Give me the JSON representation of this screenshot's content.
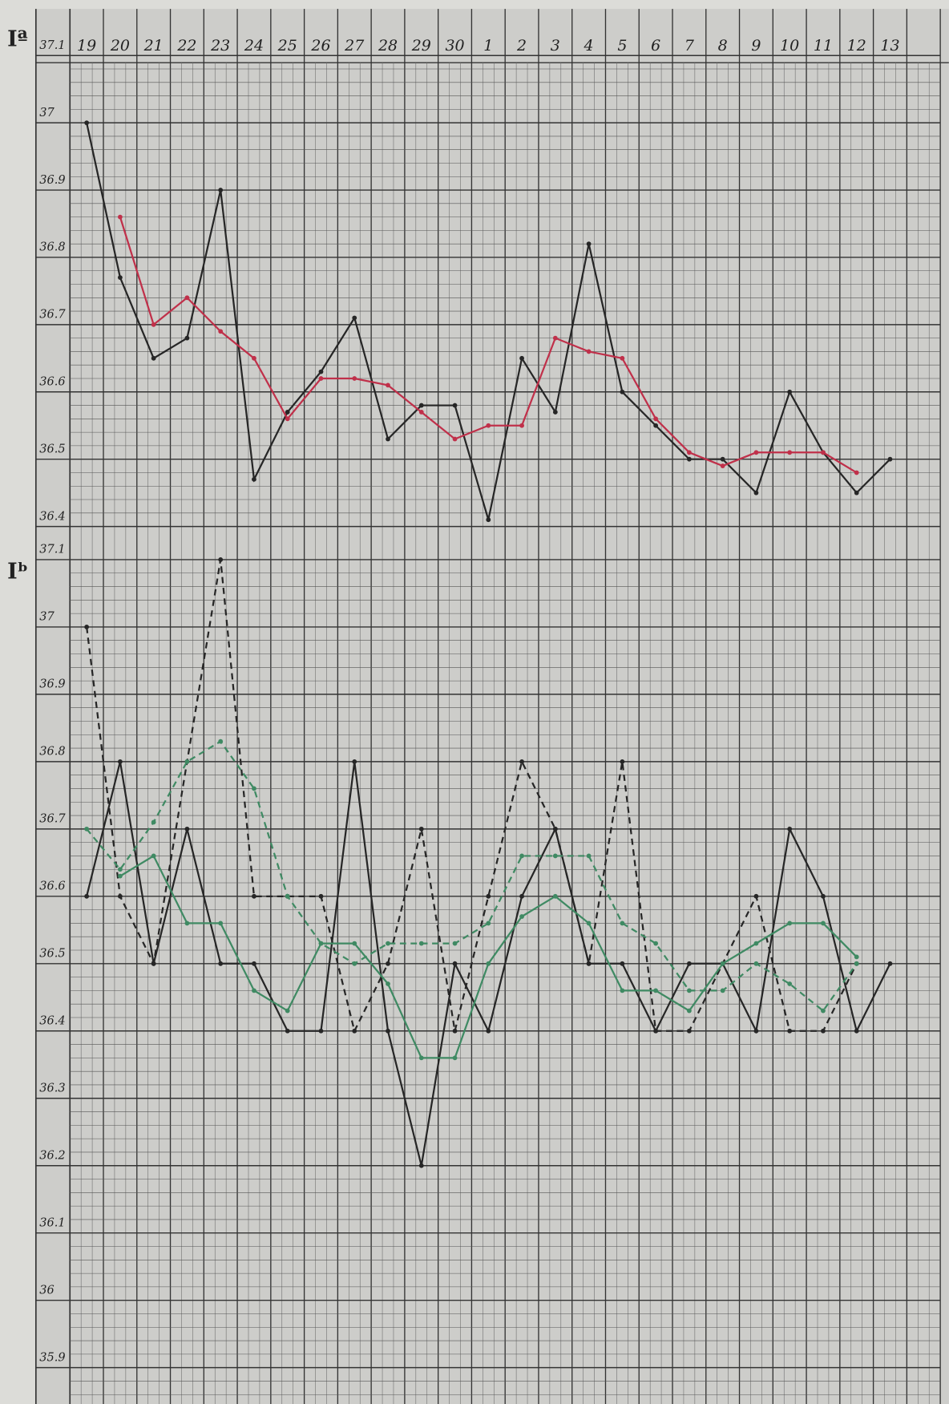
{
  "chart_data": [
    {
      "type": "line",
      "title": "Iª",
      "categories": [
        "19",
        "20",
        "21",
        "22",
        "23",
        "24",
        "25",
        "26",
        "27",
        "28",
        "29",
        "30",
        "1",
        "2",
        "3",
        "4",
        "5",
        "6",
        "7",
        "8",
        "9",
        "10",
        "11",
        "12",
        "13"
      ],
      "ylim": [
        36.38,
        37.1
      ],
      "yticks": [
        37.1,
        37,
        36.9,
        36.8,
        36.7,
        36.6,
        36.5,
        36.4
      ],
      "grid": true,
      "series": [
        {
          "color": "#262626",
          "dashed": false,
          "values": [
            37.0,
            36.77,
            36.65,
            36.68,
            36.9,
            36.47,
            36.57,
            36.63,
            36.71,
            36.53,
            36.58,
            36.58,
            36.41,
            36.65,
            36.57,
            36.82,
            36.6,
            36.55,
            36.5,
            36.5,
            36.45,
            36.6,
            36.51,
            36.45,
            36.5
          ]
        },
        {
          "color": "#c0304a",
          "dashed": false,
          "values": [
            null,
            36.86,
            36.7,
            36.74,
            36.69,
            36.65,
            36.56,
            36.62,
            36.62,
            36.61,
            36.57,
            36.53,
            36.55,
            36.55,
            36.68,
            36.66,
            36.65,
            36.56,
            36.51,
            36.49,
            36.51,
            36.51,
            36.51,
            36.48,
            null
          ]
        }
      ]
    },
    {
      "type": "line",
      "title": "Iᵇ",
      "ylim": [
        35.85,
        37.1
      ],
      "yticks": [
        37.1,
        37,
        36.9,
        36.8,
        36.7,
        36.6,
        36.5,
        36.4,
        36.3,
        36.2,
        36.1,
        36,
        35.9
      ],
      "grid": true,
      "series": [
        {
          "color": "#262626",
          "dashed": false,
          "values": [
            36.6,
            36.8,
            36.5,
            36.7,
            36.5,
            36.5,
            36.4,
            36.4,
            36.8,
            36.4,
            36.2,
            36.5,
            36.4,
            36.6,
            36.7,
            36.5,
            36.5,
            36.4,
            36.5,
            36.5,
            36.4,
            36.7,
            36.6,
            36.4,
            36.5
          ]
        },
        {
          "color": "#262626",
          "dashed": true,
          "values": [
            37.0,
            36.6,
            36.5,
            36.8,
            37.1,
            36.6,
            36.6,
            36.6,
            36.4,
            36.5,
            36.7,
            36.4,
            36.6,
            36.8,
            36.7,
            36.5,
            36.8,
            36.4,
            36.4,
            36.5,
            36.6,
            36.4,
            36.4,
            36.5,
            null
          ]
        },
        {
          "color": "#3f8a63",
          "dashed": false,
          "values": [
            null,
            36.63,
            36.66,
            36.56,
            36.56,
            36.46,
            36.43,
            36.53,
            36.53,
            36.47,
            36.36,
            36.36,
            36.5,
            36.57,
            36.6,
            36.56,
            36.46,
            36.46,
            36.43,
            36.5,
            36.53,
            36.56,
            36.56,
            36.51,
            null
          ]
        },
        {
          "color": "#3f8a63",
          "dashed": true,
          "values": [
            36.7,
            36.64,
            36.71,
            36.8,
            36.83,
            36.76,
            36.6,
            36.53,
            36.5,
            36.53,
            36.53,
            36.53,
            36.56,
            36.66,
            36.66,
            36.66,
            36.56,
            36.53,
            36.46,
            36.46,
            36.5,
            36.47,
            36.43,
            36.5,
            null
          ]
        }
      ]
    }
  ]
}
